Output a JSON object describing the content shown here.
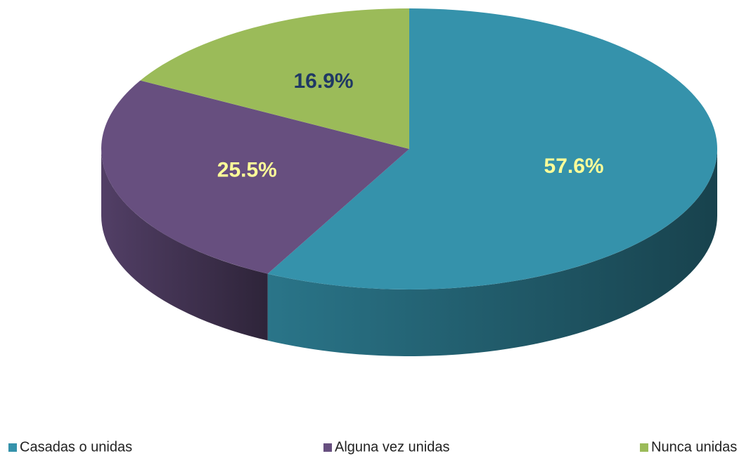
{
  "chart_data": {
    "type": "pie3d",
    "categories": [
      "Casadas o unidas",
      "Alguna vez unidas",
      "Nunca unidas"
    ],
    "values": [
      57.6,
      25.5,
      16.9
    ],
    "value_labels": [
      "57.6%",
      "25.5%",
      "16.9%"
    ],
    "colors": [
      "#3592ab",
      "#674f7f",
      "#9bbb59"
    ],
    "label_colors": [
      "#ffff99",
      "#ffff99",
      "#1f3864"
    ],
    "legend": "bottom"
  }
}
